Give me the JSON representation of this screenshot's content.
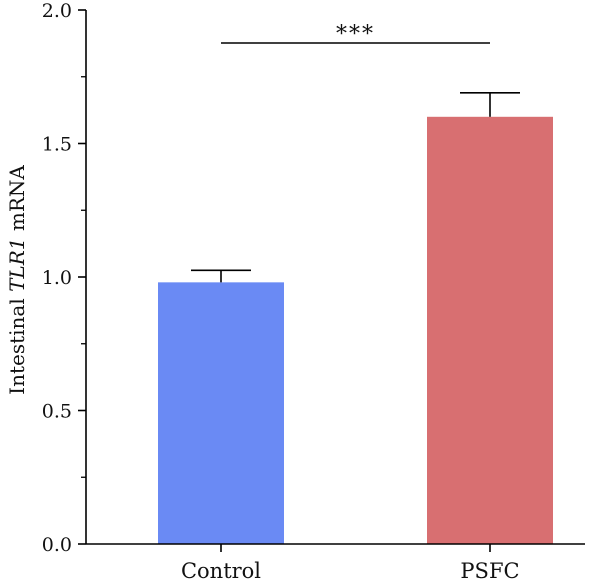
{
  "chart_data": {
    "type": "bar",
    "categories": [
      "Control",
      "PSFC"
    ],
    "values": [
      0.98,
      1.6
    ],
    "errors": [
      0.045,
      0.09
    ],
    "colors": [
      "#6a8af4",
      "#d86f71"
    ],
    "ylabel_parts": [
      {
        "text": "Intestinal ",
        "italic": false
      },
      {
        "text": "TLR1",
        "italic": true
      },
      {
        "text": " mRNA",
        "italic": false
      }
    ],
    "ylim": [
      0,
      2.0
    ],
    "yticks": [
      "0.0",
      "0.5",
      "1.0",
      "1.5",
      "2.0"
    ],
    "significance": {
      "label": "***",
      "from": "Control",
      "to": "PSFC"
    },
    "grid": false
  }
}
